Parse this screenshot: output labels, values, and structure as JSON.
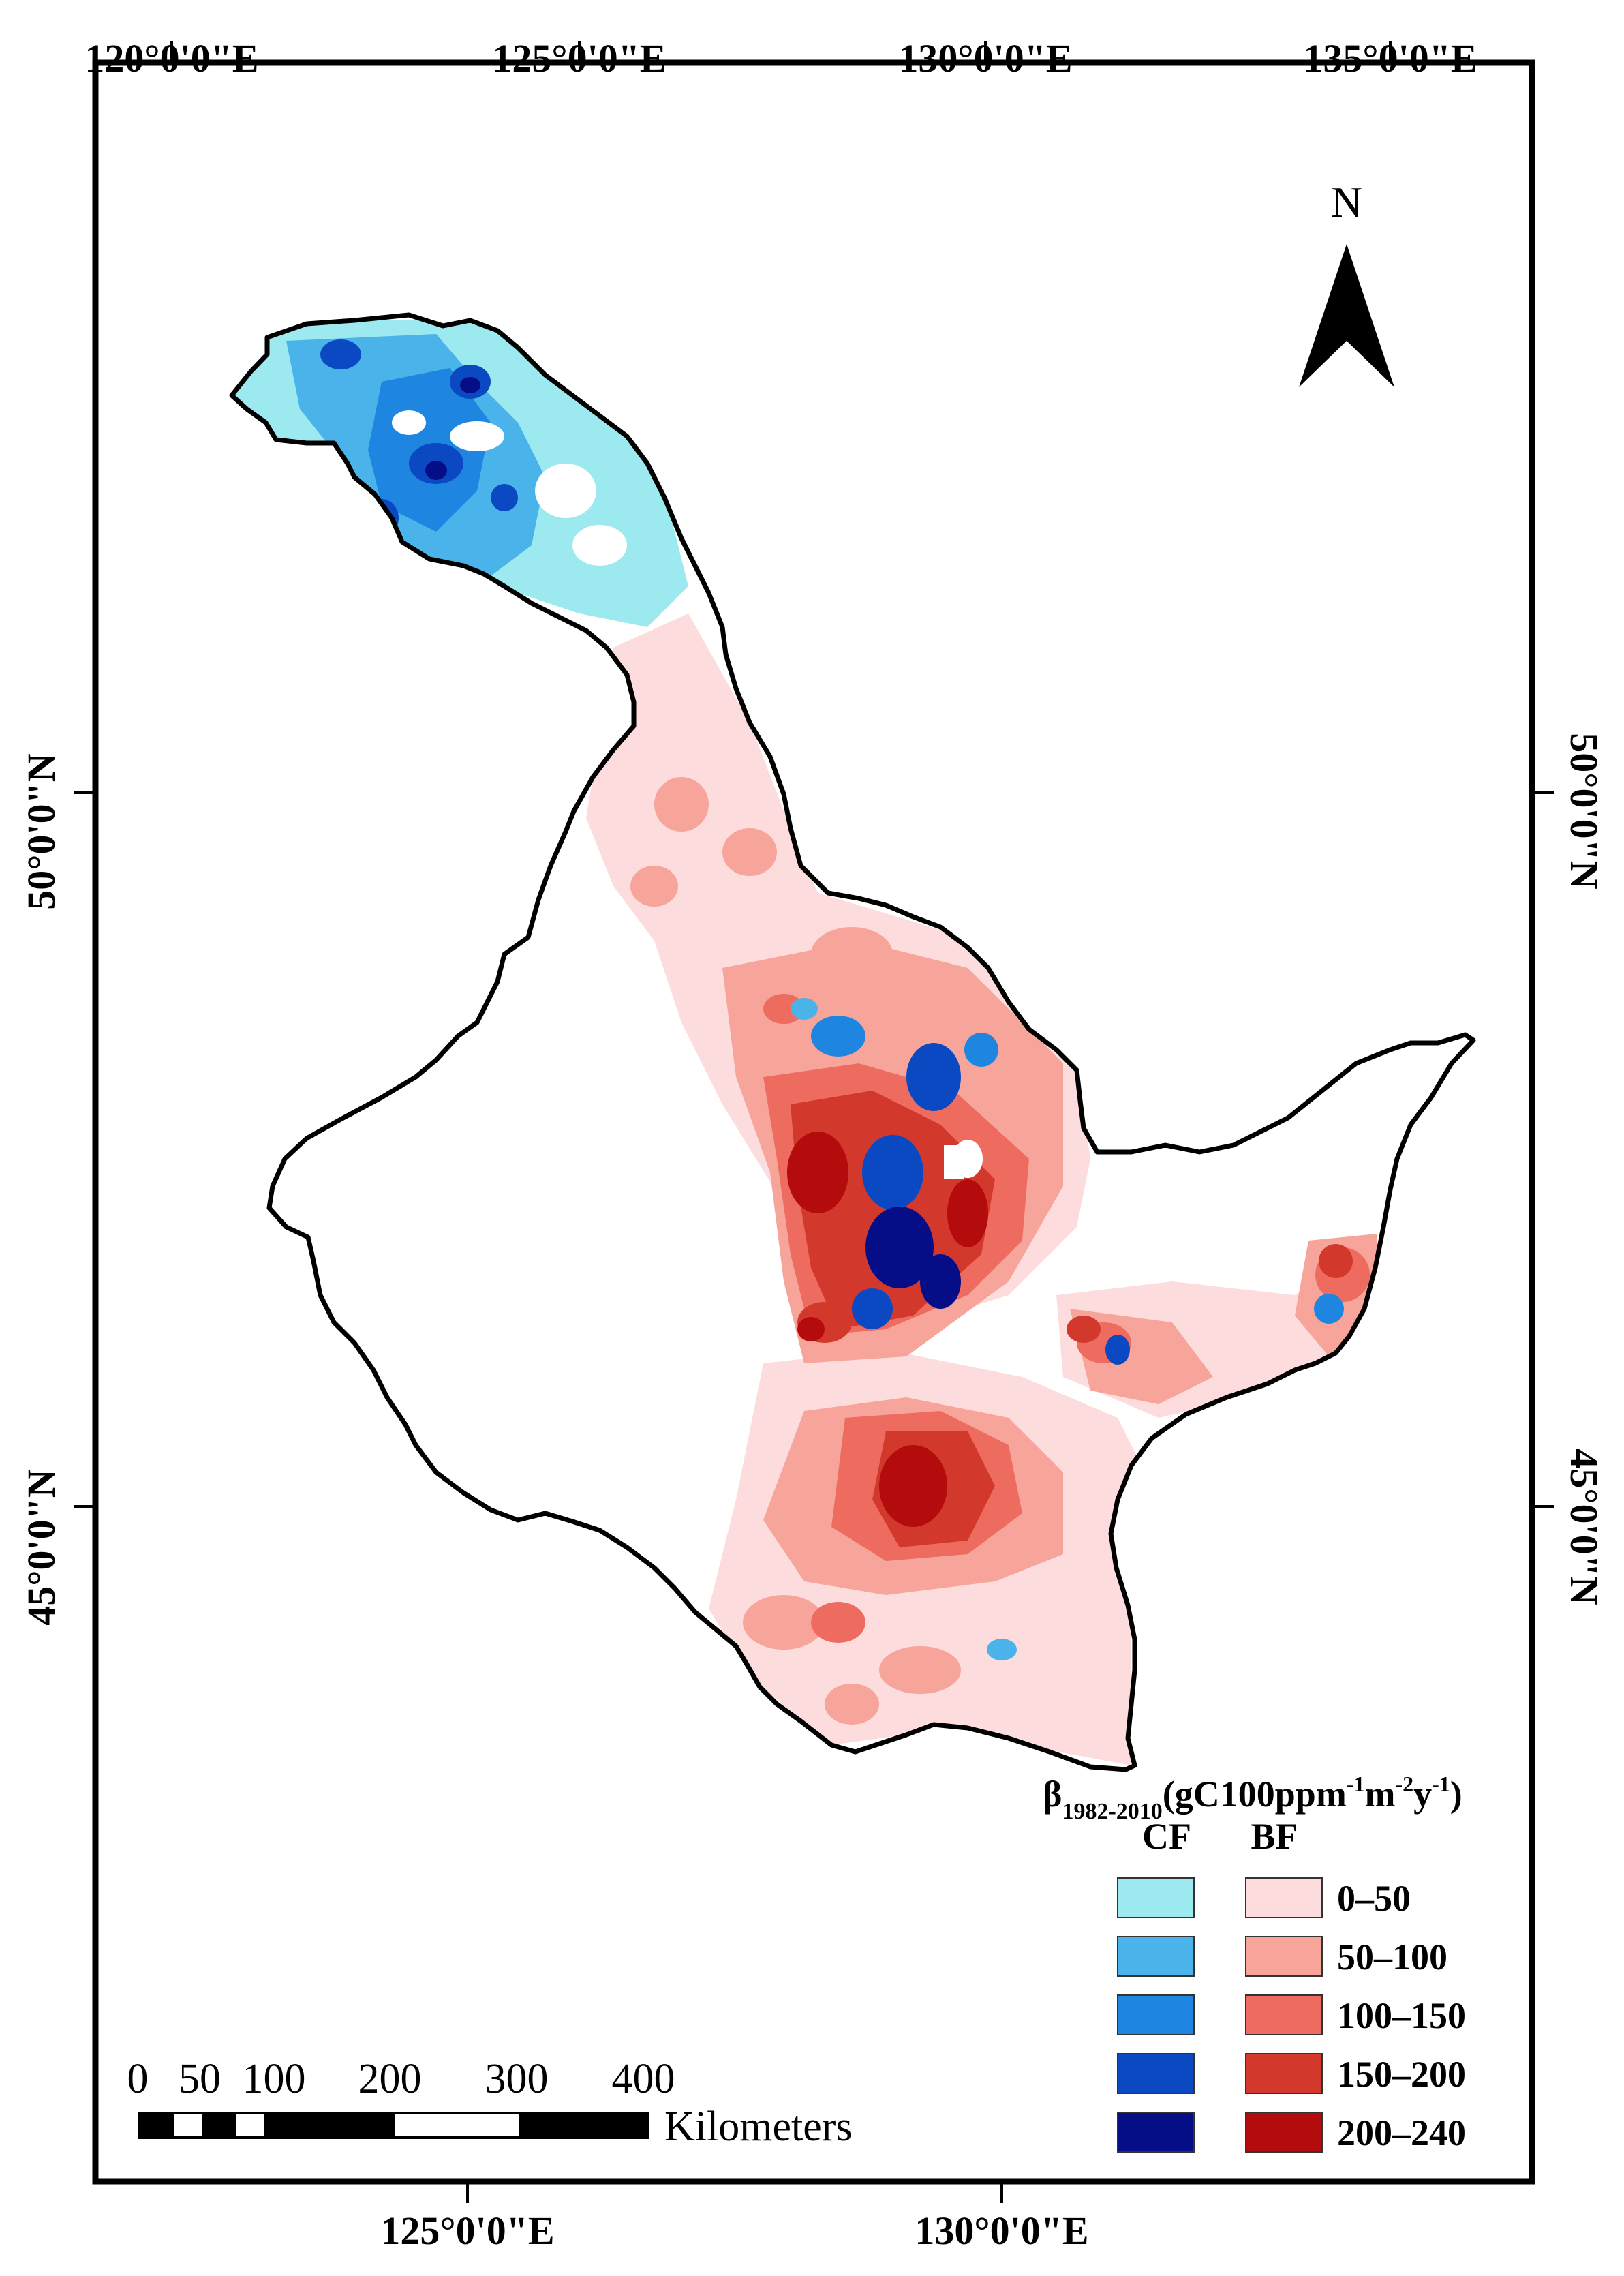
{
  "map": {
    "top_longitude_labels": [
      "120°0'0\"E",
      "125°0'0\"E",
      "130°0'0\"E",
      "135°0'0\"E"
    ],
    "bottom_longitude_labels": [
      "125°0'0\"E",
      "130°0'0\"E"
    ],
    "left_latitude_labels": [
      "50°0'0\"N",
      "45°0'0\"N"
    ],
    "right_latitude_labels": [
      "50°0'0\"N",
      "45°0'0\"N"
    ],
    "north_arrow_label": "N",
    "colors": {
      "cf": [
        "#9ceaf0",
        "#4ab3ea",
        "#1e86e0",
        "#0a49c2",
        "#050e86"
      ],
      "bf": [
        "#fcdcdc",
        "#f7a49b",
        "#ee6c5f",
        "#d2392c",
        "#b40c0c"
      ]
    }
  },
  "legend": {
    "beta": "β",
    "subscript": "1982-2010",
    "unit_prefix": "(gC100ppm",
    "sup1": "-1",
    "unit_m": "m",
    "sup2": "-2",
    "unit_y": "y",
    "sup3": "-1",
    "unit_close": ")",
    "cf_header": "CF",
    "bf_header": "BF",
    "classes": [
      "0–50",
      "50–100",
      "100–150",
      "150–200",
      "200–240"
    ]
  },
  "scale_bar": {
    "labels": [
      "0",
      "50",
      "100",
      "200",
      "300",
      "400"
    ],
    "unit": "Kilometers"
  }
}
